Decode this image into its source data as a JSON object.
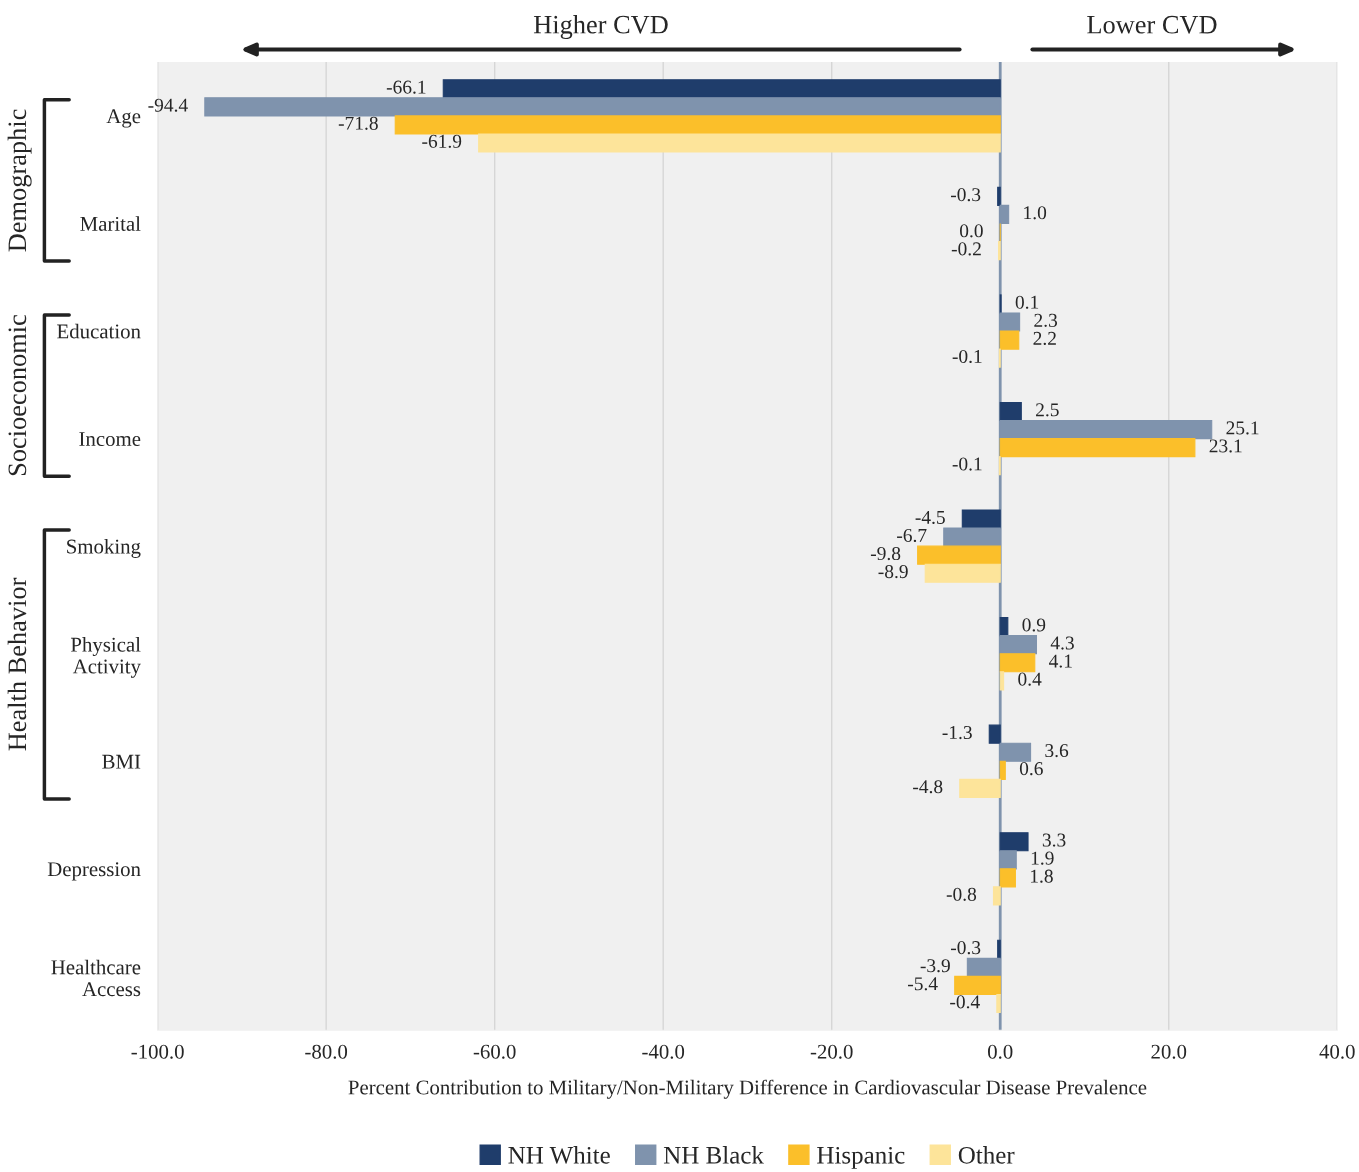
{
  "chart_data": {
    "type": "bar",
    "orientation": "horizontal",
    "xlabel": "Percent Contribution to Military/Non-Military Difference in Cardiovascular Disease Prevalence",
    "categories": [
      "Age",
      "Marital",
      "Education",
      "Income",
      "Smoking",
      "Physical\nActivity",
      "BMI",
      "Depression",
      "Healthcare\nAccess"
    ],
    "series": [
      {
        "name": "NH White",
        "color": "#1f3d6b",
        "values": [
          -66.1,
          -0.3,
          0.1,
          2.5,
          -4.5,
          0.9,
          -1.3,
          3.3,
          -0.3
        ],
        "value_labels": [
          "-66.1",
          "-0.3",
          "0.1",
          "2.5",
          "-4.5",
          "0.9",
          "-1.3",
          "3.3",
          "-0.3"
        ]
      },
      {
        "name": "NH Black",
        "color": "#7f93ad",
        "values": [
          -94.4,
          1.0,
          2.3,
          25.1,
          -6.7,
          4.3,
          3.6,
          1.9,
          -3.9
        ],
        "value_labels": [
          "-94.4",
          "1.0",
          "2.3",
          "25.1",
          "-6.7",
          "4.3",
          "3.6",
          "1.9",
          "-3.9"
        ]
      },
      {
        "name": "Hispanic",
        "color": "#fbbf2a",
        "values": [
          -71.8,
          0.0,
          2.2,
          23.1,
          -9.8,
          4.1,
          0.6,
          1.8,
          -5.4
        ],
        "value_labels": [
          "-71.8",
          "0.0",
          "2.2",
          "23.1",
          "-9.8",
          "4.1",
          "0.6",
          "1.8",
          "-5.4"
        ]
      },
      {
        "name": "Other",
        "color": "#fde49a",
        "values": [
          -61.9,
          -0.2,
          -0.1,
          -0.1,
          -8.9,
          0.4,
          -4.8,
          -0.8,
          -0.4
        ],
        "value_labels": [
          "-61.9",
          "-0.2",
          "-0.1",
          "-0.1",
          "-8.9",
          "0.4",
          "-4.8",
          "-0.8",
          "-0.4"
        ]
      }
    ],
    "xlim": [
      -100,
      40
    ],
    "xticks": [
      {
        "value": -100,
        "label": "-100.0"
      },
      {
        "value": -80,
        "label": "-80.0"
      },
      {
        "value": -60,
        "label": "-60.0"
      },
      {
        "value": -40,
        "label": "-40.0"
      },
      {
        "value": -20,
        "label": "-20.0"
      },
      {
        "value": 0,
        "label": "0.0"
      },
      {
        "value": 20,
        "label": "20.0"
      },
      {
        "value": 40,
        "label": "40.0"
      }
    ],
    "ref_lines": [
      {
        "axis": "x",
        "value": 0,
        "color": "#7f93ad"
      }
    ],
    "annotations": [
      "Higher CVD",
      "Lower CVD",
      "Demographic",
      "Socioeconomic",
      "Health Behavior"
    ],
    "grid": "x",
    "legend": "bottom"
  }
}
